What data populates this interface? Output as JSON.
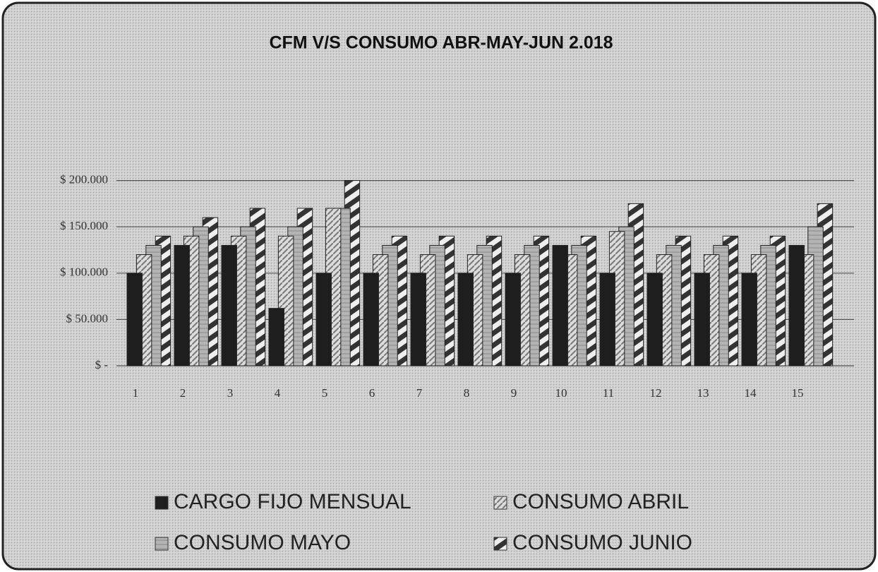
{
  "chart_data": {
    "type": "bar",
    "title": "CFM V/S CONSUMO ABR-MAY-JUN 2.018",
    "categories": [
      "1",
      "2",
      "3",
      "4",
      "5",
      "6",
      "7",
      "8",
      "9",
      "10",
      "11",
      "12",
      "13",
      "14",
      "15"
    ],
    "series": [
      {
        "name": "CARGO FIJO MENSUAL",
        "color": "#1e1e1e",
        "values": [
          100000,
          130000,
          130000,
          62000,
          100000,
          100000,
          100000,
          100000,
          100000,
          130000,
          100000,
          100000,
          100000,
          100000,
          130000
        ]
      },
      {
        "name": "CONSUMO ABRIL",
        "color": "#d4d4d4",
        "values": [
          120000,
          140000,
          140000,
          140000,
          170000,
          120000,
          120000,
          120000,
          120000,
          120000,
          145000,
          120000,
          120000,
          120000,
          120000
        ]
      },
      {
        "name": "CONSUMO MAYO",
        "color": "#a8a8a8",
        "values": [
          130000,
          150000,
          150000,
          150000,
          170000,
          130000,
          130000,
          130000,
          130000,
          130000,
          150000,
          130000,
          130000,
          130000,
          150000
        ]
      },
      {
        "name": "CONSUMO JUNIO",
        "color": "#3a3a3a",
        "values": [
          140000,
          160000,
          170000,
          170000,
          200000,
          140000,
          140000,
          140000,
          140000,
          140000,
          175000,
          140000,
          140000,
          140000,
          175000
        ]
      }
    ],
    "ylim": [
      0,
      250000
    ],
    "yticks": [
      {
        "value": 0,
        "label": "$ -"
      },
      {
        "value": 50000,
        "label": "$ 50.000"
      },
      {
        "value": 100000,
        "label": "$ 100.000"
      },
      {
        "value": 150000,
        "label": "$ 150.000"
      },
      {
        "value": 200000,
        "label": "$ 200.000"
      }
    ],
    "grid": true
  }
}
